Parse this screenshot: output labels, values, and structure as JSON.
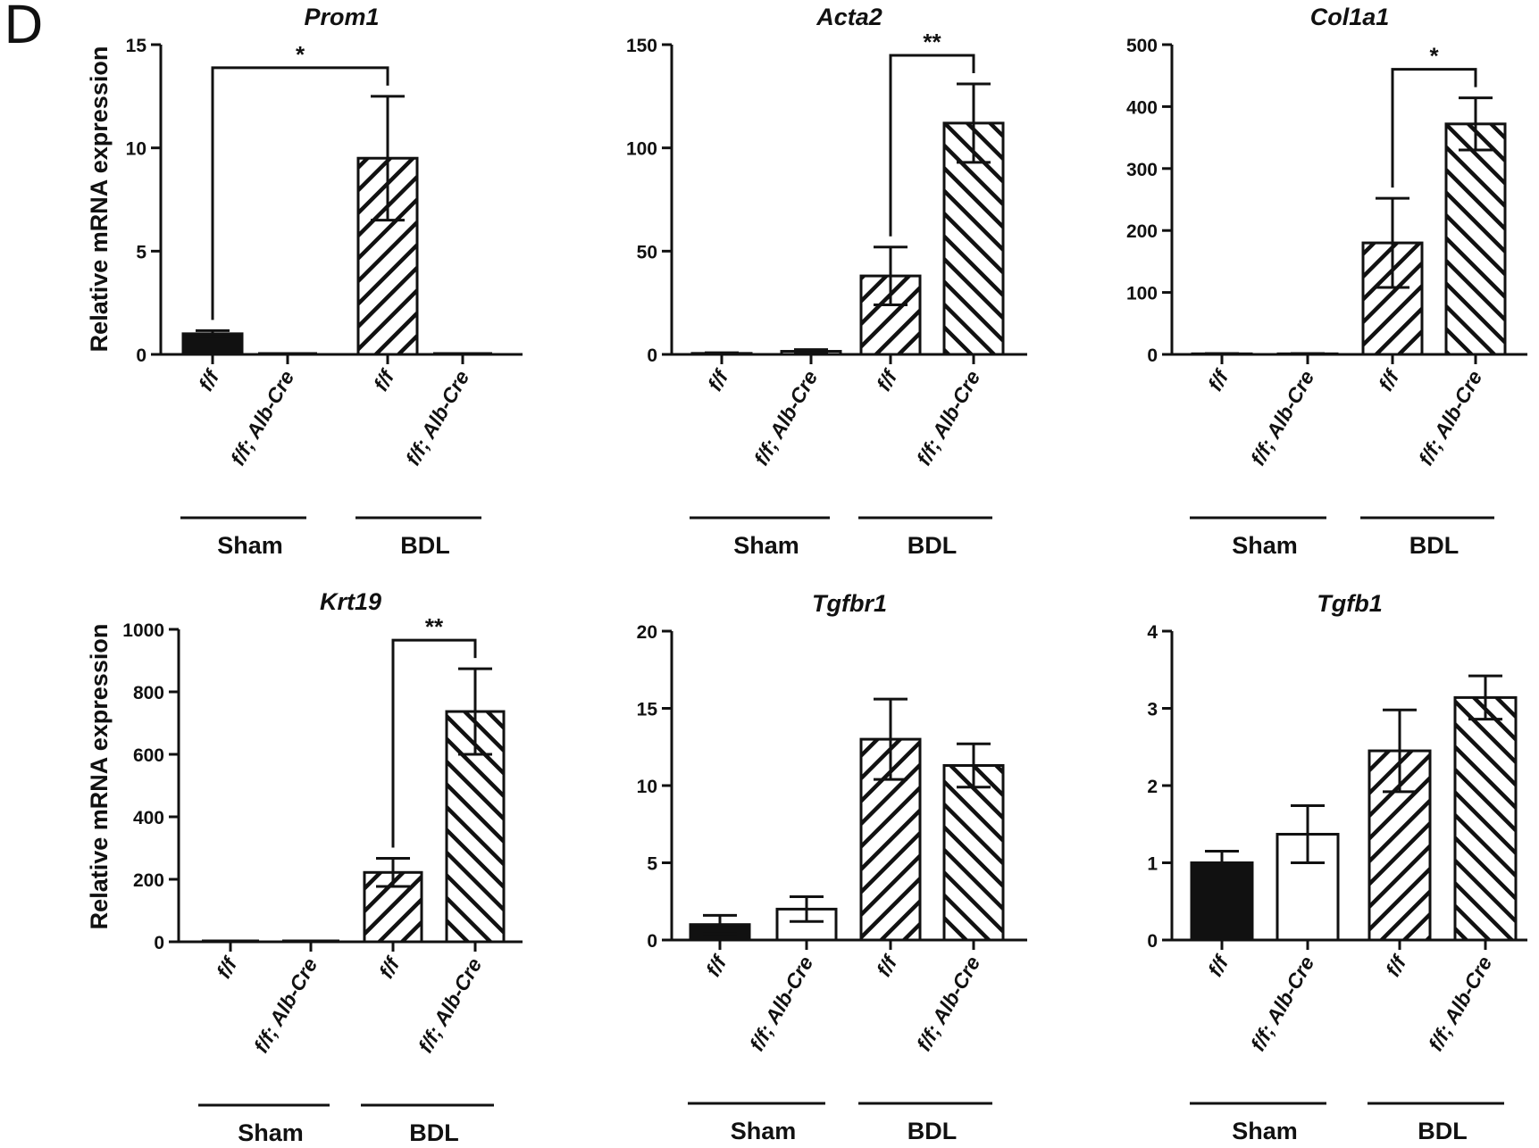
{
  "panel_label": "D",
  "colors": {
    "ink": "#111111",
    "paper": "#ffffff"
  },
  "chart_data": [
    {
      "type": "bar",
      "title": "Prom1",
      "ylabel": "Relative mRNA expression",
      "xlabel": "",
      "categories": [
        "f/f",
        "f/f; Alb-Cre",
        "f/f",
        "f/f; Alb-Cre"
      ],
      "groups": [
        {
          "label": "Sham",
          "categories": [
            0,
            1
          ]
        },
        {
          "label": "BDL",
          "categories": [
            2,
            3
          ]
        }
      ],
      "fills": [
        "solid",
        "none",
        "hatch-right",
        "none"
      ],
      "ylim": [
        0,
        15
      ],
      "yticks": [
        0,
        5,
        10,
        15
      ],
      "values": [
        1.0,
        0,
        9.5,
        0
      ],
      "errors": [
        0.15,
        0,
        3.0,
        0
      ],
      "significance": [
        {
          "from": 0,
          "to": 2,
          "label": "*"
        }
      ]
    },
    {
      "type": "bar",
      "title": "Acta2",
      "ylabel": "",
      "xlabel": "",
      "categories": [
        "f/f",
        "f/f; Alb-Cre",
        "f/f",
        "f/f; Alb-Cre"
      ],
      "groups": [
        {
          "label": "Sham",
          "categories": [
            0,
            1
          ]
        },
        {
          "label": "BDL",
          "categories": [
            2,
            3
          ]
        }
      ],
      "fills": [
        "solid",
        "none",
        "hatch-right",
        "hatch-left"
      ],
      "ylim": [
        0,
        150
      ],
      "yticks": [
        0,
        50,
        100,
        150
      ],
      "values": [
        0.5,
        1.5,
        38,
        112
      ],
      "errors": [
        0.3,
        0.8,
        14,
        19
      ],
      "significance": [
        {
          "from": 2,
          "to": 3,
          "label": "**"
        }
      ]
    },
    {
      "type": "bar",
      "title": "Col1a1",
      "ylabel": "",
      "xlabel": "",
      "categories": [
        "f/f",
        "f/f; Alb-Cre",
        "f/f",
        "f/f; Alb-Cre"
      ],
      "groups": [
        {
          "label": "Sham",
          "categories": [
            0,
            1
          ]
        },
        {
          "label": "BDL",
          "categories": [
            2,
            3
          ]
        }
      ],
      "fills": [
        "solid",
        "none",
        "hatch-right",
        "hatch-left"
      ],
      "ylim": [
        0,
        500
      ],
      "yticks": [
        0,
        100,
        200,
        300,
        400,
        500
      ],
      "values": [
        1,
        1,
        180,
        372
      ],
      "errors": [
        0.5,
        0.5,
        72,
        42
      ],
      "significance": [
        {
          "from": 2,
          "to": 3,
          "label": "*"
        }
      ]
    },
    {
      "type": "bar",
      "title": "Krt19",
      "ylabel": "Relative mRNA expression",
      "xlabel": "",
      "categories": [
        "f/f",
        "f/f; Alb-Cre",
        "f/f",
        "f/f; Alb-Cre"
      ],
      "groups": [
        {
          "label": "Sham",
          "categories": [
            0,
            1
          ]
        },
        {
          "label": "BDL",
          "categories": [
            2,
            3
          ]
        }
      ],
      "fills": [
        "solid",
        "none",
        "hatch-right",
        "hatch-left"
      ],
      "ylim": [
        0,
        1000
      ],
      "yticks": [
        0,
        200,
        400,
        600,
        800,
        1000
      ],
      "values": [
        1,
        1,
        222,
        737
      ],
      "errors": [
        0.5,
        0.5,
        45,
        137
      ],
      "significance": [
        {
          "from": 2,
          "to": 3,
          "label": "**"
        }
      ]
    },
    {
      "type": "bar",
      "title": "Tgfbr1",
      "ylabel": "",
      "xlabel": "",
      "categories": [
        "f/f",
        "f/f; Alb-Cre",
        "f/f",
        "f/f; Alb-Cre"
      ],
      "groups": [
        {
          "label": "Sham",
          "categories": [
            0,
            1
          ]
        },
        {
          "label": "BDL",
          "categories": [
            2,
            3
          ]
        }
      ],
      "fills": [
        "solid",
        "none",
        "hatch-right",
        "hatch-left"
      ],
      "ylim": [
        0,
        20
      ],
      "yticks": [
        0,
        5,
        10,
        15,
        20
      ],
      "values": [
        1.0,
        2.0,
        13.0,
        11.3
      ],
      "errors": [
        0.6,
        0.8,
        2.6,
        1.4
      ],
      "significance": []
    },
    {
      "type": "bar",
      "title": "Tgfb1",
      "ylabel": "",
      "xlabel": "",
      "categories": [
        "f/f",
        "f/f; Alb-Cre",
        "f/f",
        "f/f; Alb-Cre"
      ],
      "groups": [
        {
          "label": "Sham",
          "categories": [
            0,
            1
          ]
        },
        {
          "label": "BDL",
          "categories": [
            2,
            3
          ]
        }
      ],
      "fills": [
        "solid",
        "none",
        "hatch-right",
        "hatch-left"
      ],
      "ylim": [
        0,
        4
      ],
      "yticks": [
        0,
        1,
        2,
        3,
        4
      ],
      "values": [
        1.0,
        1.37,
        2.45,
        3.14
      ],
      "errors": [
        0.15,
        0.37,
        0.53,
        0.28
      ],
      "significance": []
    }
  ]
}
